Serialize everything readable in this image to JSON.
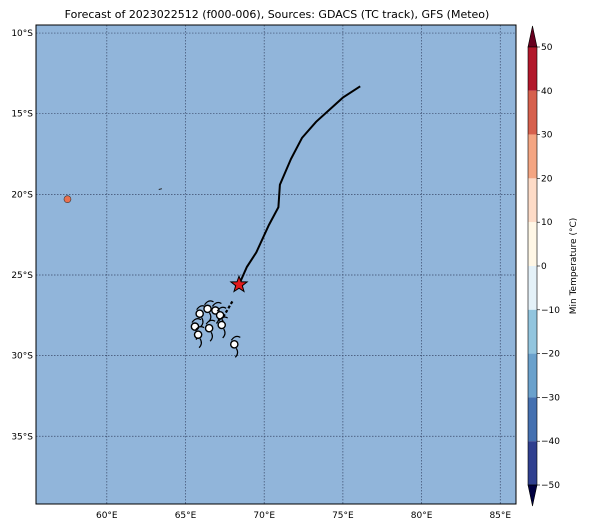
{
  "title": "Forecast of 2023022512 (f000-006), Sources: GDACS (TC track), GFS (Meteo)",
  "map": {
    "lon_range": [
      55.5,
      86
    ],
    "lat_range": [
      -39.2,
      -9.5
    ],
    "lon_ticks": [
      60,
      65,
      70,
      75,
      80,
      85
    ],
    "lat_ticks": [
      -10,
      -15,
      -20,
      -25,
      -30,
      -35
    ],
    "lon_tick_labels": [
      "60°E",
      "65°E",
      "70°E",
      "75°E",
      "80°E",
      "85°E"
    ],
    "lat_tick_labels": [
      "10°S",
      "15°S",
      "20°S",
      "25°S",
      "30°S",
      "35°S"
    ],
    "grid": true,
    "ocean_color": "#91b5da",
    "land_color": "#e8704f"
  },
  "tc_track": {
    "line_color": "#000000",
    "points": [
      [
        76.1,
        -13.3
      ],
      [
        75.0,
        -14.0
      ],
      [
        73.3,
        -15.5
      ],
      [
        72.4,
        -16.5
      ],
      [
        71.7,
        -17.8
      ],
      [
        71.0,
        -19.4
      ],
      [
        70.9,
        -20.8
      ],
      [
        70.3,
        -21.9
      ],
      [
        69.5,
        -23.6
      ],
      [
        68.9,
        -24.5
      ],
      [
        68.4,
        -25.6
      ]
    ],
    "current_position": [
      68.4,
      -25.6
    ],
    "current_marker_color": "#e31a1c"
  },
  "wind_barbs": [
    {
      "lon": 65.6,
      "lat": -28.2
    },
    {
      "lon": 65.9,
      "lat": -27.4
    },
    {
      "lon": 66.4,
      "lat": -27.1
    },
    {
      "lon": 66.9,
      "lat": -27.2
    },
    {
      "lon": 67.2,
      "lat": -27.5
    },
    {
      "lon": 67.3,
      "lat": -28.1
    },
    {
      "lon": 66.5,
      "lat": -28.3
    },
    {
      "lon": 65.8,
      "lat": -28.7
    },
    {
      "lon": 68.1,
      "lat": -29.3
    }
  ],
  "colorbar": {
    "label": "Min Temperature (°C)",
    "ticks": [
      "50",
      "40",
      "30",
      "20",
      "10",
      "0",
      "−10",
      "−20",
      "−30",
      "−40",
      "−50"
    ],
    "colors": [
      "#67001f",
      "#b2182b",
      "#d6604d",
      "#f4a582",
      "#fddbc7",
      "#fff7e6",
      "#e4f1f8",
      "#92c5de",
      "#6aa1cc",
      "#4470b0",
      "#2f3f8f",
      "#1a1a6a"
    ]
  },
  "chart_data": {
    "type": "map",
    "title": "Forecast of 2023022512 (f000-006), Sources: GDACS (TC track), GFS (Meteo)",
    "colorbar_label": "Min Temperature (°C)",
    "colorbar_range": [
      -50,
      50
    ],
    "x_ticks": [
      "60°E",
      "65°E",
      "70°E",
      "75°E",
      "80°E",
      "85°E"
    ],
    "y_ticks": [
      "10°S",
      "15°S",
      "20°S",
      "25°S",
      "30°S",
      "35°S"
    ]
  }
}
